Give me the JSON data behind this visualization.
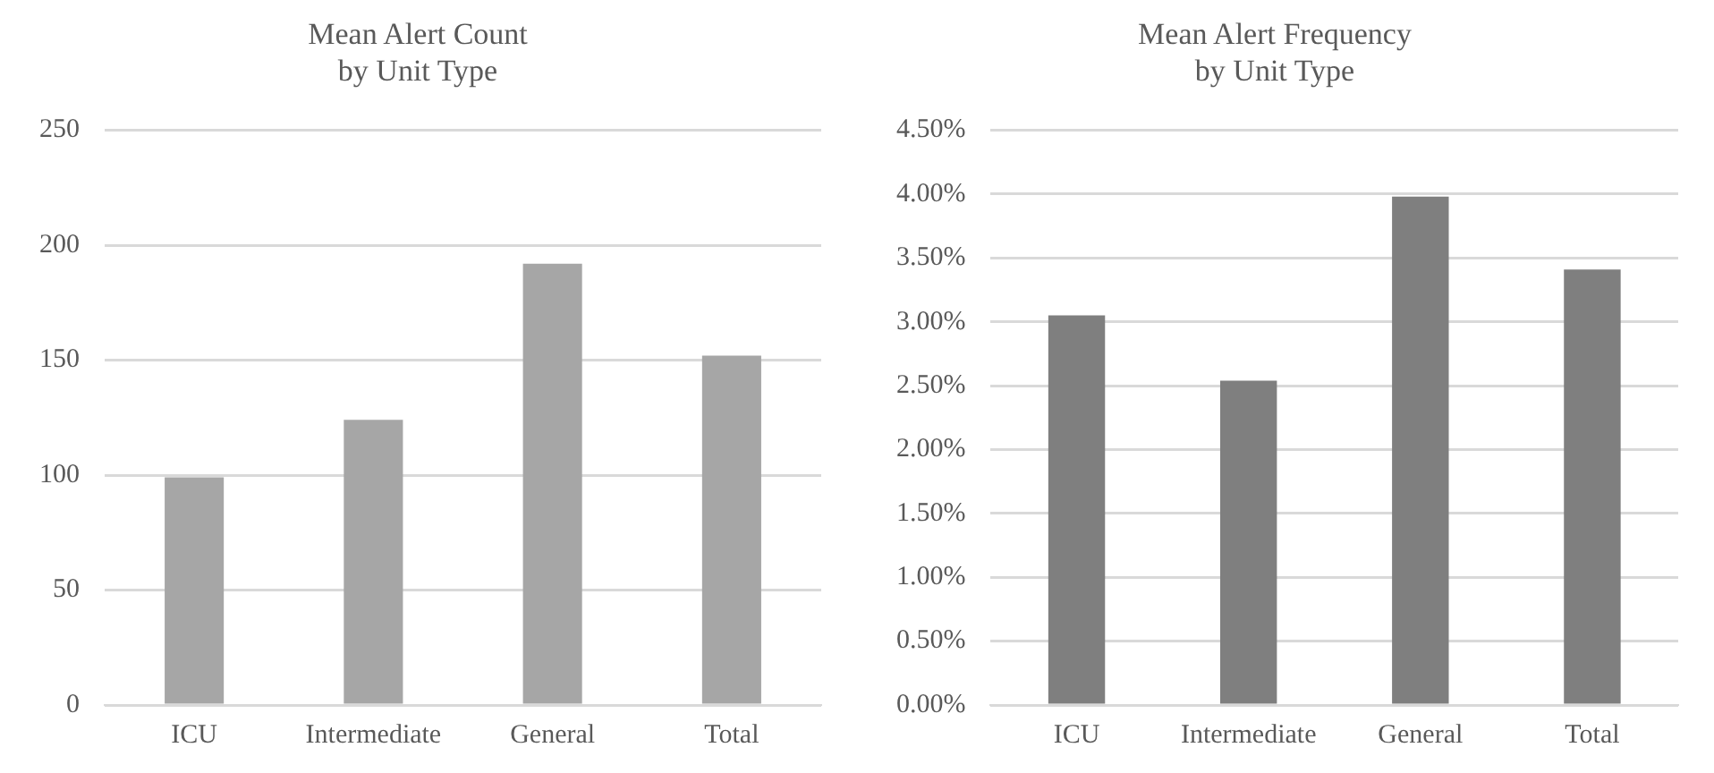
{
  "chart_data": [
    {
      "type": "bar",
      "title": "Mean Alert Count\nby Unit Type",
      "categories": [
        "ICU",
        "Intermediate",
        "General",
        "Total"
      ],
      "values": [
        99,
        124,
        192,
        152
      ],
      "color": "#a6a6a6",
      "ylim": [
        0,
        250
      ],
      "yticks": [
        0,
        50,
        100,
        150,
        200,
        250
      ],
      "grid": "y"
    },
    {
      "type": "bar",
      "title": "Mean Alert Frequency\nby Unit Type",
      "categories": [
        "ICU",
        "Intermediate",
        "General",
        "Total"
      ],
      "values": [
        3.05,
        2.54,
        3.98,
        3.41
      ],
      "color": "#7f7f7f",
      "ylim": [
        0,
        4.5
      ],
      "yticks": [
        {
          "value": 0,
          "label": "0.00%"
        },
        {
          "value": 0.5,
          "label": "0.50%"
        },
        {
          "value": 1,
          "label": "1.00%"
        },
        {
          "value": 1.5,
          "label": "1.50%"
        },
        {
          "value": 2,
          "label": "2.00%"
        },
        {
          "value": 2.5,
          "label": "2.50%"
        },
        {
          "value": 3,
          "label": "3.00%"
        },
        {
          "value": 3.5,
          "label": "3.50%"
        },
        {
          "value": 4,
          "label": "4.00%"
        },
        {
          "value": 4.5,
          "label": "4.50%"
        }
      ],
      "grid": "y"
    }
  ]
}
